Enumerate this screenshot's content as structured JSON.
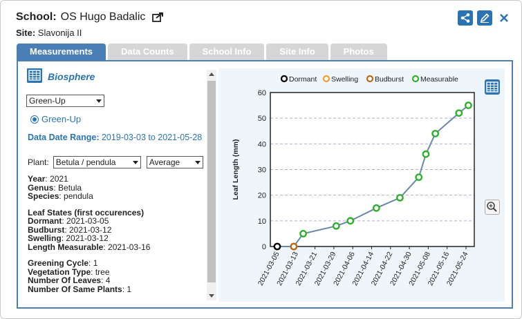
{
  "header": {
    "school_label": "School:",
    "school_name": "OS Hugo Badalic",
    "site_label": "Site:",
    "site_name": "Slavonija II"
  },
  "top_icons": [
    "share-icon",
    "edit-icon",
    "close-icon"
  ],
  "tabs": [
    {
      "label": "Measurements",
      "active": true
    },
    {
      "label": "Data Counts",
      "active": false
    },
    {
      "label": "School Info",
      "active": false
    },
    {
      "label": "Site Info",
      "active": false
    },
    {
      "label": "Photos",
      "active": false
    }
  ],
  "left": {
    "title": "Biosphere",
    "protocol_select": "Green-Up",
    "radio_label": "Green-Up",
    "range_label": "Data Date Range:",
    "range_value": "2019-03-03 to 2021-05-28",
    "plant_label": "Plant:",
    "plant_select": "Betula / pendula",
    "stat_select": "Average",
    "info1": [
      {
        "label": "Year",
        "value": "2021"
      },
      {
        "label": "Genus",
        "value": "Betula"
      },
      {
        "label": "Species",
        "value": "pendula"
      }
    ],
    "leaf_states_title": "Leaf States (first occurences)",
    "leaf_states": [
      {
        "label": "Dormant",
        "value": "2021-03-05"
      },
      {
        "label": "Budburst",
        "value": "2021-03-12"
      },
      {
        "label": "Swelling",
        "value": "2021-03-12"
      },
      {
        "label": "Length Measurable",
        "value": "2021-03-16"
      }
    ],
    "info2": [
      {
        "label": "Greening Cycle",
        "value": "1"
      },
      {
        "label": "Vegetation Type",
        "value": "tree"
      },
      {
        "label": "Number Of Leaves",
        "value": "4"
      },
      {
        "label": "Number Of Same Plants",
        "value": "1"
      }
    ]
  },
  "colors": {
    "accent": "#2a74b4",
    "dormant": "#000000",
    "swelling": "#f0a030",
    "budburst": "#b86a1c",
    "measurable": "#2fb02f",
    "line": "#6688aa"
  },
  "chart_data": {
    "type": "line",
    "ylabel": "Leaf Length (mm)",
    "ylim": [
      0,
      60
    ],
    "yticks": [
      0,
      10,
      20,
      30,
      40,
      50,
      60
    ],
    "xticks": [
      "2021-03-05",
      "2021-03-13",
      "2021-03-21",
      "2021-03-29",
      "2021-04-06",
      "2021-04-14",
      "2021-04-22",
      "2021-04-30",
      "2021-05-08",
      "2021-05-16",
      "2021-05-24"
    ],
    "legend": [
      "Dormant",
      "Swelling",
      "Budburst",
      "Measurable"
    ],
    "legend_position": "top",
    "grid": "horizontal dashed",
    "points": [
      {
        "date": "2021-03-05",
        "y": 0,
        "state": "Dormant"
      },
      {
        "date": "2021-03-12",
        "y": 0,
        "state": "Swelling"
      },
      {
        "date": "2021-03-12",
        "y": 0,
        "state": "Budburst"
      },
      {
        "date": "2021-03-16",
        "y": 5,
        "state": "Measurable"
      },
      {
        "date": "2021-03-30",
        "y": 8,
        "state": "Measurable"
      },
      {
        "date": "2021-04-05",
        "y": 10,
        "state": "Measurable"
      },
      {
        "date": "2021-04-16",
        "y": 15,
        "state": "Measurable"
      },
      {
        "date": "2021-04-26",
        "y": 19,
        "state": "Measurable"
      },
      {
        "date": "2021-05-04",
        "y": 27,
        "state": "Measurable"
      },
      {
        "date": "2021-05-07",
        "y": 36,
        "state": "Measurable"
      },
      {
        "date": "2021-05-11",
        "y": 44,
        "state": "Measurable"
      },
      {
        "date": "2021-05-21",
        "y": 52,
        "state": "Measurable"
      },
      {
        "date": "2021-05-25",
        "y": 55,
        "state": "Measurable"
      }
    ]
  }
}
